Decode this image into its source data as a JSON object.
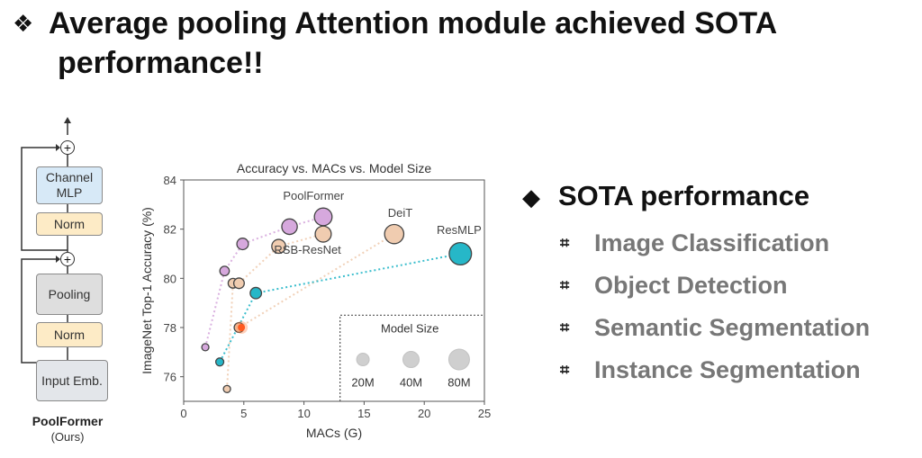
{
  "slide": {
    "title_bullet": "❖",
    "title_line1": "Average pooling Attention module achieved SOTA",
    "title_line2": "performance!!"
  },
  "architecture": {
    "blocks": [
      "Channel MLP",
      "Norm",
      "Pooling",
      "Norm",
      "Input Emb."
    ],
    "plus_symbol": "+",
    "name": "PoolFormer",
    "subtitle": "(Ours)"
  },
  "right_panel": {
    "bullet": "◆",
    "heading": "SOTA performance",
    "item_bullet": "⌗",
    "items": [
      "Image Classification",
      "Object Detection",
      "Semantic Segmentation",
      "Instance Segmentation"
    ]
  },
  "chart_data": {
    "type": "scatter",
    "title": "Accuracy vs. MACs vs. Model Size",
    "xlabel": "MACs (G)",
    "ylabel": "ImageNet Top-1 Accuracy (%)",
    "xlim": [
      0,
      25
    ],
    "ylim": [
      75,
      84
    ],
    "xticks": [
      0,
      5,
      10,
      15,
      20,
      25
    ],
    "yticks": [
      76,
      78,
      80,
      82,
      84
    ],
    "series": [
      {
        "name": "PoolFormer",
        "color": "#d6a8dd",
        "label_at": [
          10.8,
          83.2
        ],
        "points": [
          [
            1.8,
            77.2,
            12
          ],
          [
            3.4,
            80.3,
            21
          ],
          [
            4.9,
            81.4,
            31
          ],
          [
            8.8,
            82.1,
            56
          ],
          [
            11.6,
            82.5,
            73
          ]
        ]
      },
      {
        "name": "RSB-ResNet",
        "color": "#f0ccb0",
        "label_at": [
          10.3,
          81.0
        ],
        "points": [
          [
            3.6,
            75.5,
            12
          ],
          [
            4.1,
            79.8,
            22
          ],
          [
            4.6,
            79.8,
            26
          ],
          [
            7.9,
            81.3,
            45
          ],
          [
            11.6,
            81.8,
            60
          ]
        ]
      },
      {
        "name": "DeiT",
        "color": "#f0ccb0",
        "label_at": [
          18.0,
          82.5
        ],
        "points": [
          [
            4.6,
            78.0,
            22
          ],
          [
            17.5,
            81.8,
            86
          ]
        ]
      },
      {
        "name": "ResMLP",
        "color": "#26b7c8",
        "label_at": [
          22.9,
          81.8
        ],
        "points": [
          [
            3.0,
            76.6,
            15
          ],
          [
            6.0,
            79.4,
            30
          ],
          [
            23.0,
            81.0,
            116
          ]
        ]
      }
    ],
    "highlight_point": [
      4.8,
      78.0
    ],
    "legend": {
      "title": "Model Size",
      "placement": "bottom-right",
      "sizes": [
        "20M",
        "40M",
        "80M"
      ]
    }
  }
}
